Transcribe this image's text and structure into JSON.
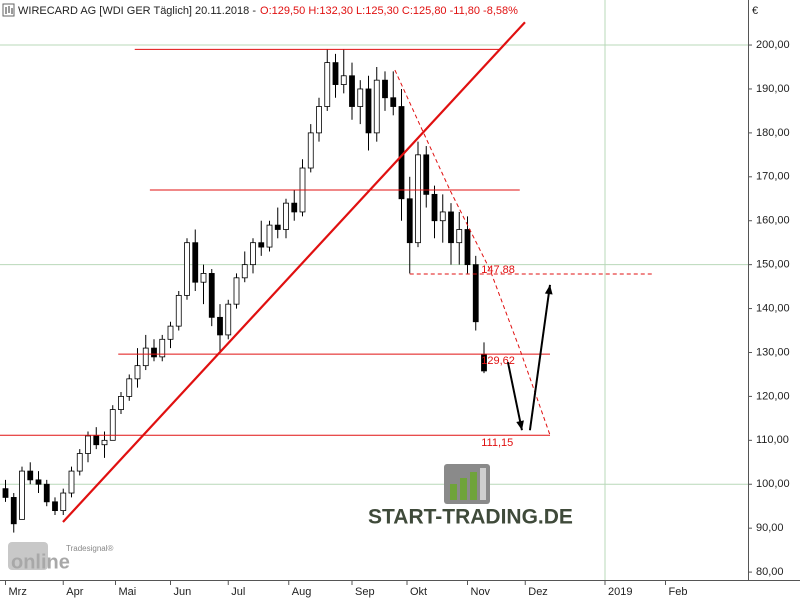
{
  "chart_data": {
    "type": "candlestick",
    "header": {
      "name": "WIRECARD AG [WDI GER  Täglich] 20.11.2018 -",
      "quote": "O:129,50 H:132,30 L:125,30 C:125,80 -11,80 -8,58%"
    },
    "currency": "€",
    "watermarks": {
      "brand": "START-TRADING.DE",
      "vendor": "Tradesignal®",
      "vendor_logo": "online"
    },
    "x": [
      0,
      3,
      6,
      9,
      12,
      15,
      18,
      21,
      24,
      27,
      30,
      33,
      36,
      39,
      42,
      45,
      48,
      51,
      54,
      57,
      60,
      63,
      66,
      69,
      72,
      75,
      78,
      81,
      84,
      87,
      90,
      93,
      96,
      99,
      102,
      105,
      108,
      111,
      114,
      117,
      120,
      123,
      126,
      129,
      132,
      135,
      138,
      141,
      144,
      147,
      150,
      153,
      156,
      159,
      162,
      165,
      168,
      171,
      174
    ],
    "open": [
      99,
      97,
      92,
      103,
      101,
      100,
      96,
      94,
      98,
      103,
      107,
      111,
      109,
      110,
      117,
      120,
      124,
      127,
      131,
      129,
      133,
      136,
      143,
      155,
      146,
      148,
      138,
      134,
      141,
      147,
      150,
      155,
      154,
      159,
      158,
      164,
      162,
      172,
      180,
      186,
      196,
      191,
      193,
      186,
      190,
      180,
      192,
      188,
      186,
      165,
      155,
      175,
      166,
      160,
      162,
      155,
      158,
      150,
      129.5
    ],
    "high": [
      101,
      98,
      104,
      105,
      103,
      101,
      97,
      99,
      104,
      108,
      112,
      113,
      112,
      118,
      121,
      125,
      131,
      134,
      133,
      134,
      137,
      144,
      156,
      158,
      150,
      149,
      141,
      142,
      148,
      153,
      156,
      160,
      160,
      163,
      165,
      167,
      174,
      182,
      188,
      199,
      198,
      199,
      196,
      192,
      193,
      195,
      194,
      194,
      190,
      170,
      178,
      177,
      168,
      166,
      164,
      162,
      161,
      152,
      132.3
    ],
    "low": [
      96,
      89,
      92,
      100,
      98,
      95,
      93,
      93,
      97,
      102,
      105,
      108,
      106,
      110,
      116,
      119,
      122,
      126,
      128,
      128,
      131,
      135,
      142,
      144,
      141,
      136,
      130,
      133,
      140,
      146,
      148,
      152,
      153,
      156,
      156,
      160,
      161,
      171,
      178,
      185,
      188,
      189,
      183,
      182,
      176,
      178,
      185,
      184,
      160,
      148,
      154,
      163,
      156,
      155,
      150,
      150,
      148,
      135,
      125.3
    ],
    "close": [
      97,
      91,
      103,
      101,
      100,
      96,
      94,
      98,
      103,
      107,
      111,
      109,
      110,
      117,
      120,
      124,
      127,
      131,
      129,
      133,
      136,
      143,
      155,
      146,
      148,
      138,
      134,
      141,
      147,
      150,
      155,
      154,
      159,
      158,
      164,
      162,
      172,
      180,
      186,
      196,
      191,
      193,
      186,
      190,
      180,
      192,
      188,
      186,
      165,
      155,
      175,
      166,
      160,
      162,
      155,
      158,
      150,
      137,
      125.8
    ],
    "up_color": "#ffffff",
    "down_color": "#000000",
    "outline_color": "#000000",
    "xlim": [
      -2,
      270
    ],
    "xticks": [
      {
        "value": 0,
        "label": "Mrz"
      },
      {
        "value": 21,
        "label": "Apr"
      },
      {
        "value": 40,
        "label": "Mai"
      },
      {
        "value": 60,
        "label": "Jun"
      },
      {
        "value": 81,
        "label": "Jul"
      },
      {
        "value": 103,
        "label": "Aug"
      },
      {
        "value": 126,
        "label": "Sep"
      },
      {
        "value": 146,
        "label": "Okt"
      },
      {
        "value": 168,
        "label": "Nov"
      },
      {
        "value": 189,
        "label": "Dez"
      },
      {
        "value": 218,
        "label": "2019"
      },
      {
        "value": 240,
        "label": "Feb"
      }
    ],
    "ylim": [
      78.2,
      205.7
    ],
    "yticks": [
      {
        "value": 80,
        "label": "80,00"
      },
      {
        "value": 90,
        "label": "90,00"
      },
      {
        "value": 100,
        "label": "100,00"
      },
      {
        "value": 110,
        "label": "110,00"
      },
      {
        "value": 120,
        "label": "120,00"
      },
      {
        "value": 130,
        "label": "130,00"
      },
      {
        "value": 140,
        "label": "140,00"
      },
      {
        "value": 150,
        "label": "150,00"
      },
      {
        "value": 160,
        "label": "160,00"
      },
      {
        "value": 170,
        "label": "170,00"
      },
      {
        "value": 180,
        "label": "180,00"
      },
      {
        "value": 190,
        "label": "190,00"
      },
      {
        "value": 200,
        "label": "200,00"
      }
    ],
    "ygrid": [
      100,
      150,
      200
    ],
    "xgrid": [
      218
    ],
    "grid_color": "#b9d8b9",
    "annotation_color": "#e01010",
    "hlines": [
      {
        "value": 199,
        "from": 47,
        "to": 180,
        "dashed": false
      },
      {
        "value": 167,
        "from": 52.5,
        "to": 187,
        "dashed": false
      },
      {
        "value": 147.88,
        "from": 147,
        "to": 236,
        "dashed": true,
        "label": "147,88"
      },
      {
        "value": 129.62,
        "from": 41,
        "to": 198,
        "dashed": false,
        "label": "129,62"
      },
      {
        "value": 111.15,
        "from": -2,
        "to": 198,
        "dashed": false,
        "label": "111,15"
      }
    ],
    "trendline": {
      "x": [
        20.9,
        188.9
      ],
      "y": [
        91.4,
        205.2
      ]
    },
    "projection": {
      "x": [
        141.6,
        150.7,
        161.6,
        176.2,
        187.1,
        198
      ],
      "y": [
        194.3,
        181.8,
        167,
        148.8,
        130.6,
        111.2
      ]
    },
    "arrows": [
      {
        "x": [
          182.7,
          187.8
        ],
        "y": [
          127.8,
          112.3
        ]
      },
      {
        "x": [
          190.7,
          198
        ],
        "y": [
          112.3,
          145.4
        ]
      }
    ],
    "arrow_color": "#000000"
  }
}
